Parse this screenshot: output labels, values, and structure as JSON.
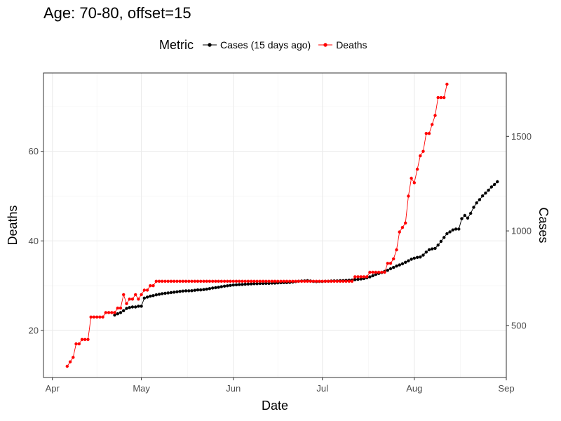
{
  "chart_data": {
    "type": "line",
    "title": "Age: 70-80, offset=15",
    "xlabel": "Date",
    "ylabel": "Deaths",
    "y2label": "Cases",
    "legend_title": "Metric",
    "legend_position": "top",
    "x_ticks": [
      "Apr",
      "May",
      "Jun",
      "Jul",
      "Aug",
      "Sep"
    ],
    "x_range_days": [
      -3,
      153
    ],
    "ylim": [
      9.5,
      77.5
    ],
    "y_ticks": [
      20,
      40,
      60
    ],
    "y2lim": [
      225,
      1835
    ],
    "y2_ticks": [
      500,
      1000,
      1500
    ],
    "x_origin": "2020-04-01",
    "series": [
      {
        "name": "Cases (15 days ago)",
        "axis": "right",
        "color": "#000000",
        "points": [
          [
            21,
            555
          ],
          [
            22,
            562
          ],
          [
            23,
            568
          ],
          [
            24,
            578
          ],
          [
            25,
            590
          ],
          [
            26,
            595
          ],
          [
            27,
            598
          ],
          [
            28,
            598
          ],
          [
            29,
            602
          ],
          [
            30,
            602
          ],
          [
            31,
            645
          ],
          [
            32,
            650
          ],
          [
            33,
            655
          ],
          [
            34,
            658
          ],
          [
            35,
            662
          ],
          [
            36,
            665
          ],
          [
            37,
            668
          ],
          [
            38,
            670
          ],
          [
            39,
            672
          ],
          [
            40,
            674
          ],
          [
            41,
            676
          ],
          [
            42,
            678
          ],
          [
            43,
            680
          ],
          [
            44,
            682
          ],
          [
            45,
            683
          ],
          [
            46,
            683
          ],
          [
            47,
            684
          ],
          [
            48,
            686
          ],
          [
            49,
            688
          ],
          [
            50,
            688
          ],
          [
            51,
            690
          ],
          [
            52,
            692
          ],
          [
            53,
            695
          ],
          [
            54,
            698
          ],
          [
            55,
            700
          ],
          [
            56,
            702
          ],
          [
            57,
            705
          ],
          [
            58,
            708
          ],
          [
            59,
            710
          ],
          [
            60,
            712
          ],
          [
            61,
            714
          ],
          [
            62,
            715
          ],
          [
            63,
            716
          ],
          [
            64,
            717
          ],
          [
            65,
            718
          ],
          [
            66,
            719
          ],
          [
            67,
            720
          ],
          [
            68,
            721
          ],
          [
            69,
            721
          ],
          [
            70,
            722
          ],
          [
            71,
            722
          ],
          [
            72,
            723
          ],
          [
            73,
            723
          ],
          [
            74,
            724
          ],
          [
            75,
            724
          ],
          [
            76,
            725
          ],
          [
            77,
            726
          ],
          [
            78,
            727
          ],
          [
            79,
            727
          ],
          [
            80,
            728
          ],
          [
            81,
            730
          ],
          [
            82,
            732
          ],
          [
            83,
            734
          ],
          [
            84,
            735
          ],
          [
            85,
            736
          ],
          [
            86,
            737
          ],
          [
            87,
            735
          ],
          [
            88,
            733
          ],
          [
            89,
            732
          ],
          [
            90,
            733
          ],
          [
            91,
            733
          ],
          [
            92,
            734
          ],
          [
            93,
            734
          ],
          [
            94,
            735
          ],
          [
            95,
            736
          ],
          [
            96,
            736
          ],
          [
            97,
            737
          ],
          [
            98,
            737
          ],
          [
            99,
            738
          ],
          [
            100,
            739
          ],
          [
            101,
            740
          ],
          [
            102,
            742
          ],
          [
            103,
            744
          ],
          [
            104,
            746
          ],
          [
            105,
            748
          ],
          [
            106,
            752
          ],
          [
            107,
            757
          ],
          [
            108,
            763
          ],
          [
            109,
            770
          ],
          [
            110,
            775
          ],
          [
            111,
            780
          ],
          [
            112,
            786
          ],
          [
            113,
            792
          ],
          [
            114,
            800
          ],
          [
            115,
            807
          ],
          [
            116,
            814
          ],
          [
            117,
            820
          ],
          [
            118,
            826
          ],
          [
            119,
            834
          ],
          [
            120,
            842
          ],
          [
            121,
            850
          ],
          [
            122,
            856
          ],
          [
            123,
            860
          ],
          [
            124,
            862
          ],
          [
            125,
            872
          ],
          [
            126,
            888
          ],
          [
            127,
            900
          ],
          [
            128,
            905
          ],
          [
            129,
            908
          ],
          [
            130,
            925
          ],
          [
            131,
            945
          ],
          [
            132,
            965
          ],
          [
            133,
            985
          ],
          [
            134,
            995
          ],
          [
            135,
            1005
          ],
          [
            136,
            1010
          ],
          [
            137,
            1010
          ],
          [
            138,
            1065
          ],
          [
            139,
            1082
          ],
          [
            140,
            1068
          ],
          [
            141,
            1093
          ],
          [
            142,
            1125
          ],
          [
            143,
            1148
          ],
          [
            144,
            1165
          ],
          [
            145,
            1185
          ],
          [
            146,
            1200
          ],
          [
            147,
            1215
          ],
          [
            148,
            1232
          ],
          [
            149,
            1245
          ],
          [
            150,
            1260
          ]
        ]
      },
      {
        "name": "Deaths",
        "axis": "left",
        "color": "#ff0000",
        "points": [
          [
            5,
            12
          ],
          [
            6,
            13
          ],
          [
            7,
            14
          ],
          [
            8,
            17
          ],
          [
            9,
            17
          ],
          [
            10,
            18
          ],
          [
            11,
            18
          ],
          [
            12,
            18
          ],
          [
            13,
            23
          ],
          [
            14,
            23
          ],
          [
            15,
            23
          ],
          [
            16,
            23
          ],
          [
            17,
            23
          ],
          [
            18,
            24
          ],
          [
            19,
            24
          ],
          [
            20,
            24
          ],
          [
            21,
            24
          ],
          [
            22,
            25
          ],
          [
            23,
            25
          ],
          [
            24,
            28
          ],
          [
            25,
            26
          ],
          [
            26,
            27
          ],
          [
            27,
            27
          ],
          [
            28,
            28
          ],
          [
            29,
            27
          ],
          [
            30,
            28
          ],
          [
            31,
            29
          ],
          [
            32,
            29
          ],
          [
            33,
            30
          ],
          [
            34,
            30
          ],
          [
            35,
            31
          ],
          [
            36,
            31
          ],
          [
            37,
            31
          ],
          [
            38,
            31
          ],
          [
            39,
            31
          ],
          [
            40,
            31
          ],
          [
            41,
            31
          ],
          [
            42,
            31
          ],
          [
            43,
            31
          ],
          [
            44,
            31
          ],
          [
            45,
            31
          ],
          [
            46,
            31
          ],
          [
            47,
            31
          ],
          [
            48,
            31
          ],
          [
            49,
            31
          ],
          [
            50,
            31
          ],
          [
            51,
            31
          ],
          [
            52,
            31
          ],
          [
            53,
            31
          ],
          [
            54,
            31
          ],
          [
            55,
            31
          ],
          [
            56,
            31
          ],
          [
            57,
            31
          ],
          [
            58,
            31
          ],
          [
            59,
            31
          ],
          [
            60,
            31
          ],
          [
            61,
            31
          ],
          [
            62,
            31
          ],
          [
            63,
            31
          ],
          [
            64,
            31
          ],
          [
            65,
            31
          ],
          [
            66,
            31
          ],
          [
            67,
            31
          ],
          [
            68,
            31
          ],
          [
            69,
            31
          ],
          [
            70,
            31
          ],
          [
            71,
            31
          ],
          [
            72,
            31
          ],
          [
            73,
            31
          ],
          [
            74,
            31
          ],
          [
            75,
            31
          ],
          [
            76,
            31
          ],
          [
            77,
            31
          ],
          [
            78,
            31
          ],
          [
            79,
            31
          ],
          [
            80,
            31
          ],
          [
            81,
            31
          ],
          [
            82,
            31
          ],
          [
            83,
            31
          ],
          [
            84,
            31
          ],
          [
            85,
            31
          ],
          [
            86,
            31
          ],
          [
            87,
            31
          ],
          [
            88,
            31
          ],
          [
            89,
            31
          ],
          [
            90,
            31
          ],
          [
            91,
            31
          ],
          [
            92,
            31
          ],
          [
            93,
            31
          ],
          [
            94,
            31
          ],
          [
            95,
            31
          ],
          [
            96,
            31
          ],
          [
            97,
            31
          ],
          [
            98,
            31
          ],
          [
            99,
            31
          ],
          [
            100,
            31
          ],
          [
            101,
            31
          ],
          [
            102,
            32
          ],
          [
            103,
            32
          ],
          [
            104,
            32
          ],
          [
            105,
            32
          ],
          [
            106,
            32
          ],
          [
            107,
            33
          ],
          [
            108,
            33
          ],
          [
            109,
            33
          ],
          [
            110,
            33
          ],
          [
            111,
            33
          ],
          [
            112,
            33
          ],
          [
            113,
            35
          ],
          [
            114,
            35
          ],
          [
            115,
            36
          ],
          [
            116,
            38
          ],
          [
            117,
            42
          ],
          [
            118,
            43
          ],
          [
            119,
            44
          ],
          [
            120,
            50
          ],
          [
            121,
            54
          ],
          [
            122,
            53
          ],
          [
            123,
            56
          ],
          [
            124,
            59
          ],
          [
            125,
            60
          ],
          [
            126,
            64
          ],
          [
            127,
            64
          ],
          [
            128,
            66
          ],
          [
            129,
            68
          ],
          [
            130,
            72
          ],
          [
            131,
            72
          ],
          [
            132,
            72
          ],
          [
            133,
            75
          ]
        ]
      }
    ]
  }
}
